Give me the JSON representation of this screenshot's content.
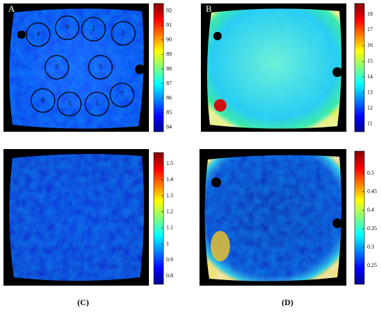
{
  "panels": [
    {
      "label": "A",
      "colorbar": {
        "lim": [
          83.7,
          92.5
        ],
        "ticks": [
          84,
          85,
          86,
          87,
          88,
          89,
          90,
          91,
          92
        ]
      },
      "regions": [
        "4",
        "9",
        "2",
        "1",
        "8",
        "5",
        "6",
        "3",
        "3",
        "7"
      ]
    },
    {
      "label": "B",
      "colorbar": {
        "lim": [
          10.5,
          18.7
        ],
        "ticks": [
          11,
          12,
          13,
          14,
          15,
          16,
          17,
          18
        ]
      }
    },
    {
      "caption": "(C)",
      "colorbar": {
        "lim": [
          0.75,
          1.57
        ],
        "ticks": [
          0.8,
          0.9,
          1,
          1.1,
          1.2,
          1.3,
          1.4,
          1.5
        ]
      }
    },
    {
      "caption": "(D)",
      "colorbar": {
        "lim": [
          0.2,
          0.56
        ],
        "ticks": [
          0.25,
          0.3,
          0.35,
          0.4,
          0.45,
          0.5
        ]
      }
    }
  ]
}
